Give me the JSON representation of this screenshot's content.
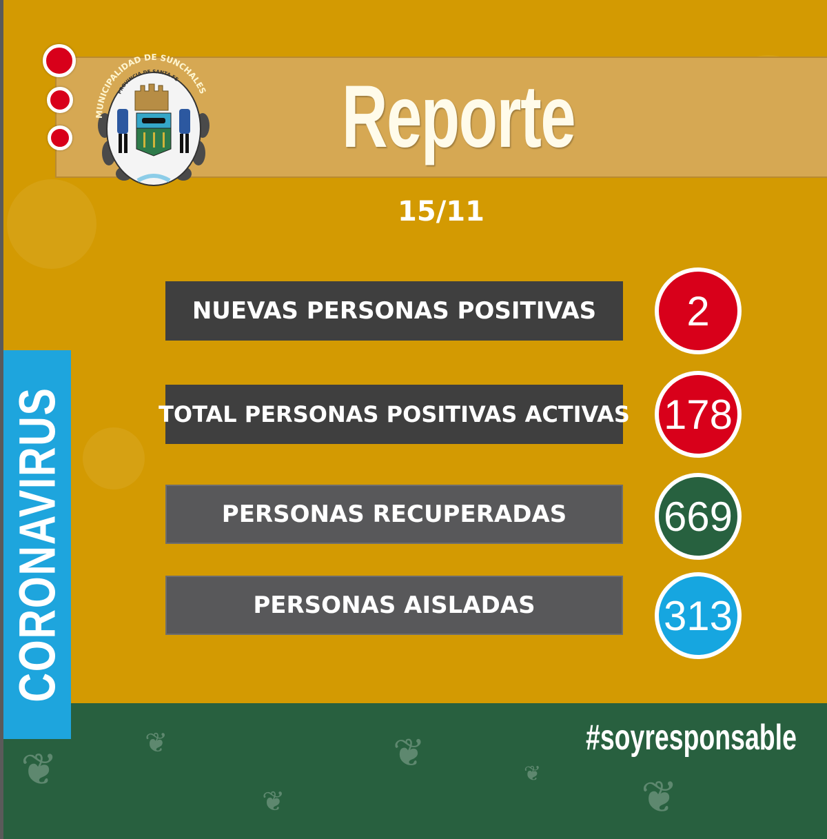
{
  "header": {
    "title": "Reporte",
    "date": "15/11"
  },
  "logo": {
    "text_outer": "MUNICIPALIDAD DE SUNCHALES",
    "text_inner": "PROVINCIA DE SANTA FE"
  },
  "side_label": "CORONAVIRUS",
  "stats": [
    {
      "label": "NUEVAS PERSONAS POSITIVAS",
      "value": "2",
      "color": "#d8001a",
      "bar_color": "#3f3f3f"
    },
    {
      "label": "TOTAL PERSONAS POSITIVAS ACTIVAS",
      "value": "178",
      "color": "#d8001a",
      "bar_color": "#3f3f3f"
    },
    {
      "label": "PERSONAS RECUPERADAS",
      "value": "669",
      "color": "#27613f",
      "bar_color": "#58585a"
    },
    {
      "label": "PERSONAS AISLADAS",
      "value": "313",
      "color": "#16a6e0",
      "bar_color": "#58585a"
    }
  ],
  "hashtag": "#soyresponsable",
  "colors": {
    "background": "#d39a02",
    "footer": "#28603f",
    "side_tab": "#1ea5dd"
  }
}
